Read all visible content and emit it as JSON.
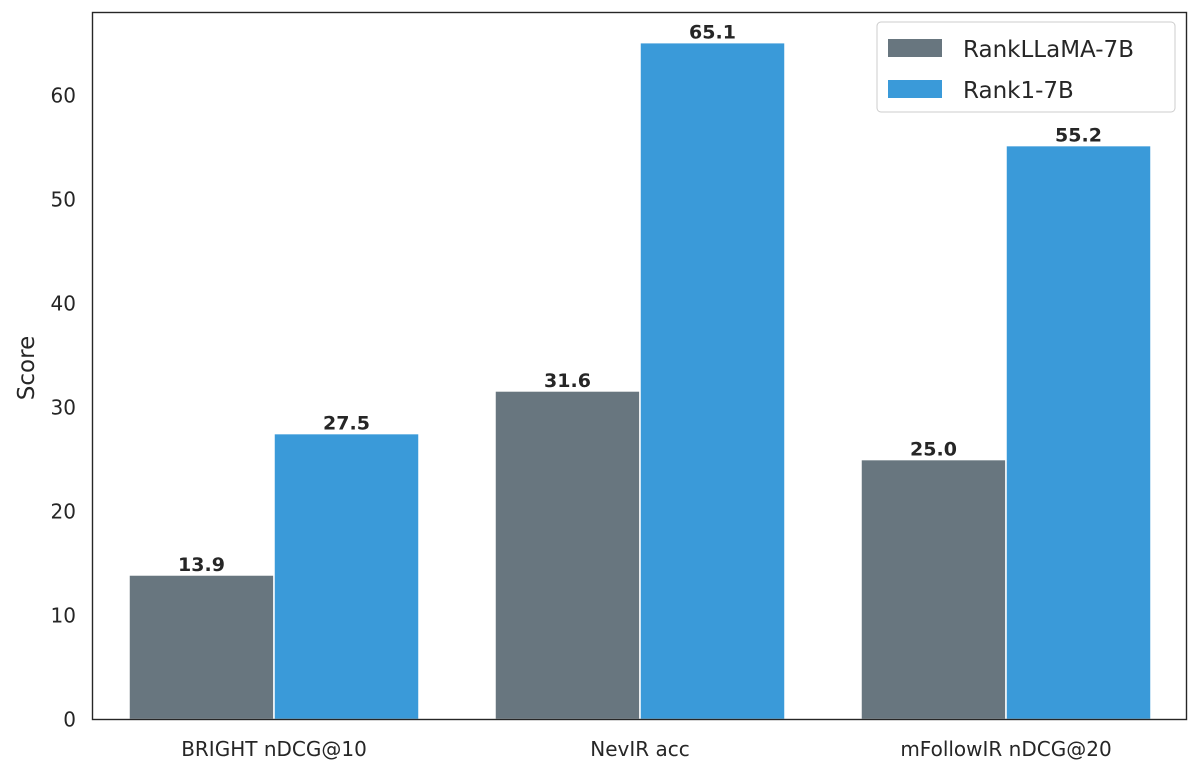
{
  "chart_data": {
    "type": "bar",
    "title": "",
    "xlabel": "",
    "ylabel": "Score",
    "ylim": [
      0,
      68
    ],
    "yticks": [
      0,
      10,
      20,
      30,
      40,
      50,
      60
    ],
    "categories": [
      "BRIGHT nDCG@10",
      "NevIR acc",
      "mFollowIR nDCG@20"
    ],
    "series": [
      {
        "name": "RankLLaMA-7B",
        "color": "#68767F",
        "values": [
          13.9,
          31.6,
          25.0
        ],
        "labels": [
          "13.9",
          "31.6",
          "25.0"
        ]
      },
      {
        "name": "Rank1-7B",
        "color": "#3A9AD9",
        "values": [
          27.5,
          65.1,
          55.2
        ],
        "labels": [
          "27.5",
          "65.1",
          "55.2"
        ]
      }
    ],
    "legend_position": "top-right",
    "grid": false
  }
}
